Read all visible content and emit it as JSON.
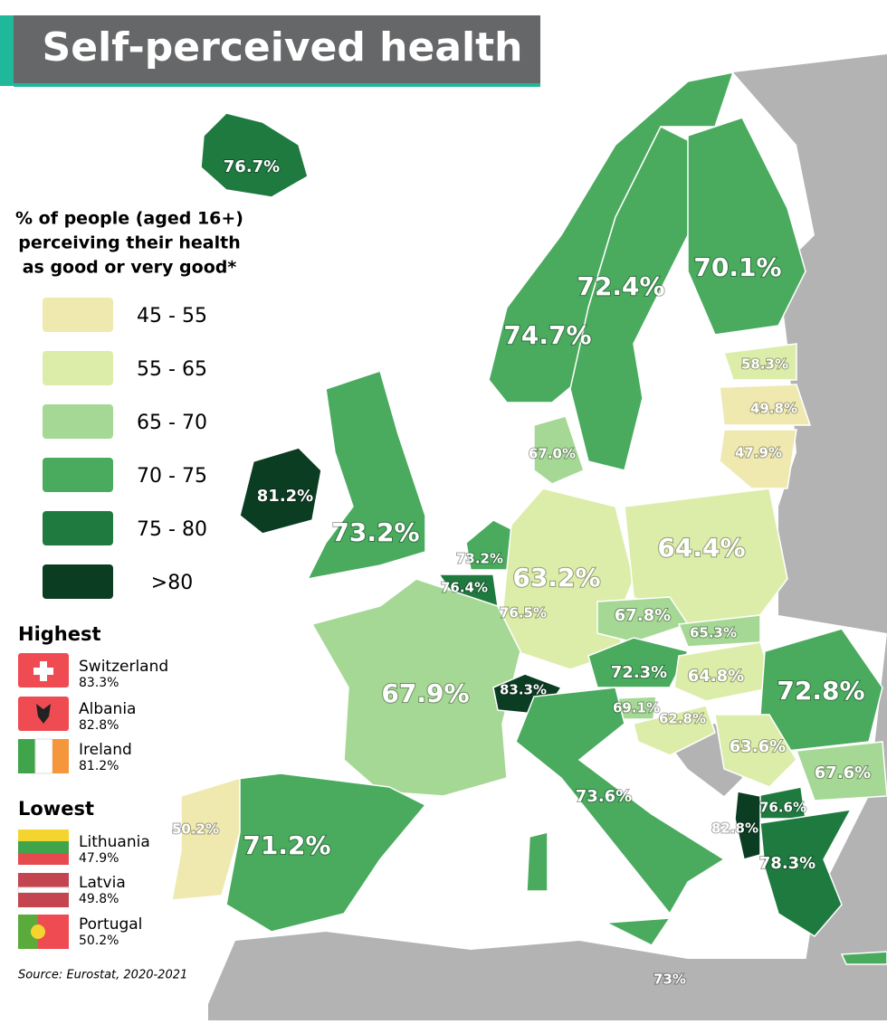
{
  "title": "Self-perceived health",
  "legend": {
    "title_lines": [
      "% of people (aged 16+)",
      "perceiving their health",
      "as good or very good*"
    ],
    "items": [
      {
        "label": "45 - 55",
        "color": "#efe9b0"
      },
      {
        "label": "55 - 65",
        "color": "#dcedaa"
      },
      {
        "label": "65 - 70",
        "color": "#a5d894"
      },
      {
        "label": "70 - 75",
        "color": "#4aab5f"
      },
      {
        "label": "75 - 80",
        "color": "#1f7a40"
      },
      {
        "label": ">80",
        "color": "#0b3d22"
      }
    ]
  },
  "highest": {
    "title": "Highest",
    "items": [
      {
        "country": "Switzerland",
        "value": "83.3%"
      },
      {
        "country": "Albania",
        "value": "82.8%"
      },
      {
        "country": "Ireland",
        "value": "81.2%"
      }
    ]
  },
  "lowest": {
    "title": "Lowest",
    "items": [
      {
        "country": "Lithuania",
        "value": "47.9%"
      },
      {
        "country": "Latvia",
        "value": "49.8%"
      },
      {
        "country": "Portugal",
        "value": "50.2%"
      }
    ]
  },
  "source": "Source: Eurostat, 2020-2021",
  "regions": [
    {
      "label": "76.7%"
    },
    {
      "label": "74.7%"
    },
    {
      "label": "72.4%"
    },
    {
      "label": "70.1%"
    },
    {
      "label": "58.3%"
    },
    {
      "label": "49.8%"
    },
    {
      "label": "47.9%"
    },
    {
      "label": "67.0%"
    },
    {
      "label": "81.2%"
    },
    {
      "label": "73.2%"
    },
    {
      "label": "73.2%"
    },
    {
      "label": "76.4%"
    },
    {
      "label": "76.5%"
    },
    {
      "label": "63.2%"
    },
    {
      "label": "64.4%"
    },
    {
      "label": "67.8%"
    },
    {
      "label": "65.3%"
    },
    {
      "label": "72.3%"
    },
    {
      "label": "64.8%"
    },
    {
      "label": "67.9%"
    },
    {
      "label": "83.3%"
    },
    {
      "label": "69.1%"
    },
    {
      "label": "62.8%"
    },
    {
      "label": "72.8%"
    },
    {
      "label": "63.6%"
    },
    {
      "label": "67.6%"
    },
    {
      "label": "73.6%"
    },
    {
      "label": "50.2%"
    },
    {
      "label": "71.2%"
    },
    {
      "label": "76.6%"
    },
    {
      "label": "82.8%"
    },
    {
      "label": "78.3%"
    },
    {
      "label": "73%"
    }
  ]
}
